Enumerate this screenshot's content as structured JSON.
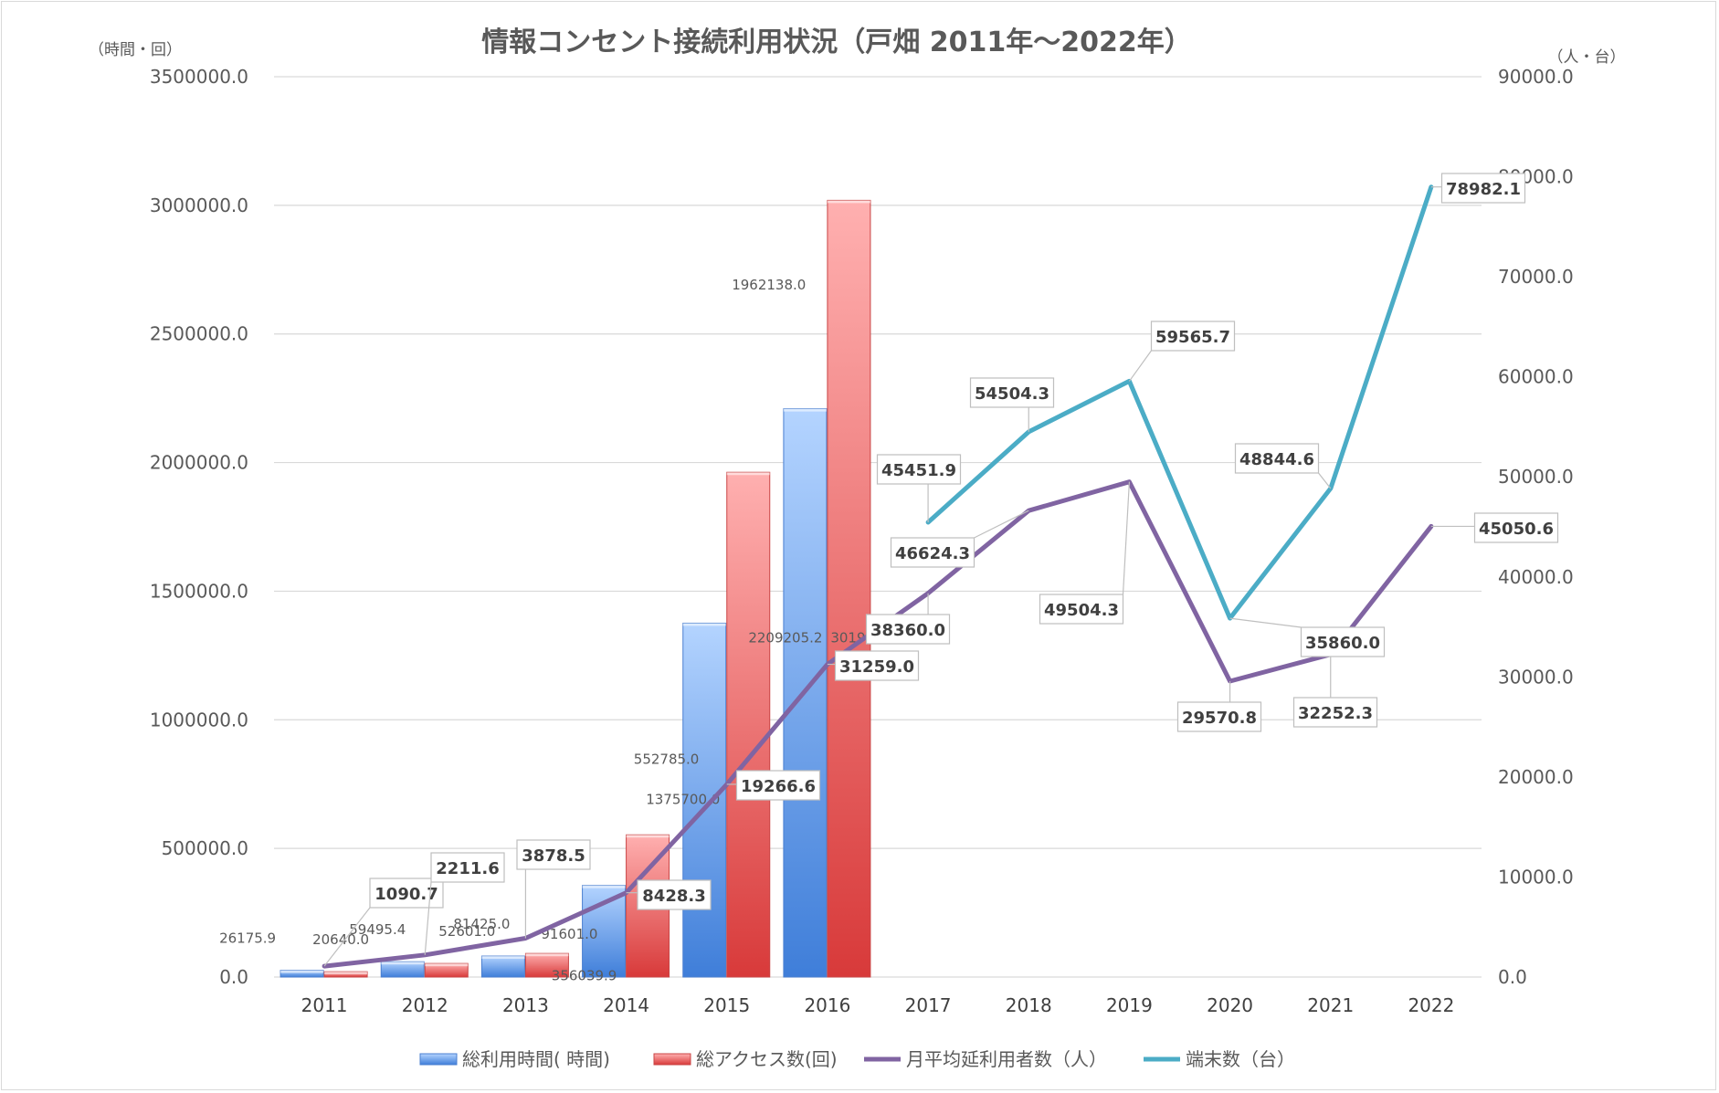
{
  "chart_data": {
    "type": "bar+line",
    "title": "情報コンセント接続利用状況（戸畑 2011年～2022年）",
    "y_left_unit": "（時間・回）",
    "y_right_unit": "（人・台）",
    "categories": [
      "2011",
      "2012",
      "2013",
      "2014",
      "2015",
      "2016",
      "2017",
      "2018",
      "2019",
      "2020",
      "2021",
      "2022"
    ],
    "y_left_ticks": [
      "0.0",
      "500000.0",
      "1000000.0",
      "1500000.0",
      "2000000.0",
      "2500000.0",
      "3000000.0",
      "3500000.0"
    ],
    "y_right_ticks": [
      "0.0",
      "10000.0",
      "20000.0",
      "30000.0",
      "40000.0",
      "50000.0",
      "60000.0",
      "70000.0",
      "80000.0",
      "90000.0"
    ],
    "ylim_left": [
      0,
      3500000
    ],
    "ylim_right": [
      0,
      90000
    ],
    "grid": true,
    "legend_position": "bottom",
    "series": [
      {
        "name": "総利用時間( 時間)",
        "axis": "left",
        "kind": "bar",
        "color": "#4f8ee6",
        "values": [
          26175.9,
          59495.4,
          81425.0,
          356039.9,
          1375700.0,
          2209205.2,
          null,
          null,
          null,
          null,
          null,
          null
        ],
        "labels": [
          "26175.9",
          "59495.4",
          "81425.0",
          "356039.9",
          "1375700.0",
          "2209205.2"
        ]
      },
      {
        "name": "総アクセス数(回)",
        "axis": "left",
        "kind": "bar",
        "color": "#e55353",
        "values": [
          20640.0,
          52601.0,
          91601.0,
          552785.0,
          1962138.0,
          3019398.0,
          null,
          null,
          null,
          null,
          null,
          null
        ],
        "labels": [
          "20640.0",
          "52601.0",
          "91601.0",
          "552785.0",
          "1962138.0",
          "3019398.0"
        ]
      },
      {
        "name": "月平均延利用者数（人）",
        "axis": "right",
        "kind": "line",
        "color": "#8064a2",
        "values": [
          1090.7,
          2211.6,
          3878.5,
          8428.3,
          19266.6,
          31259.0,
          38360.0,
          46624.3,
          49504.3,
          29570.8,
          32252.3,
          45050.6
        ],
        "labels": [
          "1090.7",
          "2211.6",
          "3878.5",
          "8428.3",
          "19266.6",
          "31259.0",
          "38360.0",
          "46624.3",
          "49504.3",
          "29570.8",
          "32252.3",
          "45050.6"
        ]
      },
      {
        "name": "端末数（台）",
        "axis": "right",
        "kind": "line",
        "color": "#4bacc6",
        "values": [
          null,
          null,
          null,
          null,
          null,
          null,
          45451.9,
          54504.3,
          59565.7,
          35860.0,
          48844.6,
          78982.1
        ],
        "labels": [
          "",
          "",
          "",
          "",
          "",
          "",
          "45451.9",
          "54504.3",
          "59565.7",
          "35860.0",
          "48844.6",
          "78982.1"
        ]
      }
    ]
  }
}
